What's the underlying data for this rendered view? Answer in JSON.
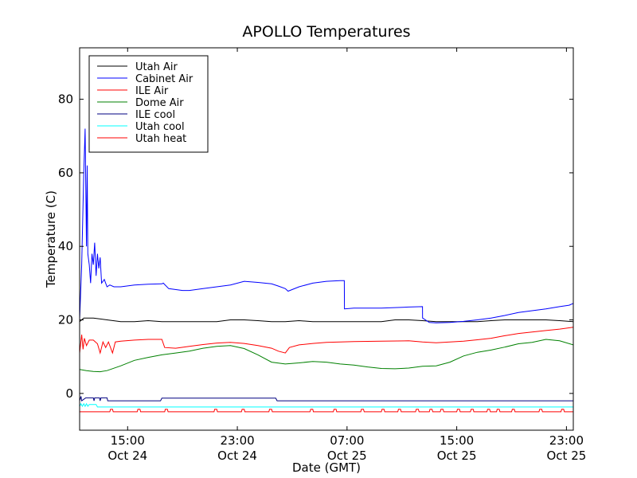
{
  "chart_data": {
    "type": "line",
    "title": "APOLLO Temperatures",
    "xlabel": "Date (GMT)",
    "ylabel": "Temperature (C)",
    "x_unit": "hours since Oct 24 11:00 GMT",
    "xlim": [
      0,
      36
    ],
    "ylim": [
      -10,
      94
    ],
    "yticks": [
      0,
      20,
      40,
      60,
      80
    ],
    "xticks": [
      {
        "x": 3.5,
        "time": "15:00",
        "date": "Oct 24"
      },
      {
        "x": 11.5,
        "time": "23:00",
        "date": "Oct 24"
      },
      {
        "x": 19.5,
        "time": "07:00",
        "date": "Oct 25"
      },
      {
        "x": 27.5,
        "time": "15:00",
        "date": "Oct 25"
      },
      {
        "x": 35.5,
        "time": "23:00",
        "date": "Oct 25"
      }
    ],
    "legend_position": "top-left",
    "series": [
      {
        "name": "Utah Air",
        "color": "#000000",
        "x": [
          0,
          0.3,
          1,
          2,
          3,
          4,
          5,
          6,
          7,
          8,
          9,
          10,
          11,
          12,
          13,
          14,
          15,
          16,
          17,
          18,
          19,
          20,
          21,
          22,
          23,
          24,
          25,
          26,
          27,
          28,
          29,
          30,
          31,
          32,
          33,
          34,
          35,
          36
        ],
        "y": [
          19.5,
          20.5,
          20.5,
          20,
          19.5,
          19.5,
          19.8,
          19.5,
          19.5,
          19.5,
          19.5,
          19.5,
          20,
          20,
          19.8,
          19.5,
          19.5,
          19.8,
          19.5,
          19.5,
          19.5,
          19.5,
          19.5,
          19.5,
          20,
          20,
          19.8,
          19.5,
          19.5,
          19.5,
          19.5,
          19.8,
          20,
          20,
          20,
          20,
          19.8,
          19.5
        ]
      },
      {
        "name": "Cabinet Air",
        "color": "#0000ff",
        "x": [
          0,
          0.15,
          0.3,
          0.4,
          0.45,
          0.5,
          0.55,
          0.6,
          0.7,
          0.8,
          0.9,
          1.0,
          1.1,
          1.2,
          1.3,
          1.4,
          1.5,
          1.6,
          1.8,
          2.0,
          2.2,
          2.5,
          3.0,
          4.0,
          5.0,
          6.0,
          6.1,
          6.5,
          7.5,
          8,
          9,
          10,
          11,
          12,
          13,
          14,
          14.5,
          15,
          15.2,
          16,
          17,
          18,
          19,
          19.3,
          19.31,
          20,
          22,
          24,
          25,
          25.01,
          25.5,
          26,
          27,
          28,
          29,
          30,
          31,
          32,
          33,
          34,
          35,
          35.7,
          36
        ],
        "y": [
          20,
          35,
          60,
          72,
          55,
          40,
          62,
          38,
          35,
          30,
          38,
          35,
          41,
          32,
          38,
          34,
          37,
          30,
          31,
          29,
          29.5,
          29,
          29,
          29.5,
          29.7,
          29.8,
          30,
          28.5,
          28,
          28,
          28.5,
          29,
          29.5,
          30.5,
          30.2,
          29.8,
          29.2,
          28.5,
          27.8,
          29,
          30,
          30.5,
          30.7,
          30.7,
          23,
          23.2,
          23.2,
          23.5,
          23.6,
          20.5,
          19.3,
          19.2,
          19.3,
          19.6,
          20,
          20.5,
          21.2,
          22,
          22.5,
          23,
          23.6,
          24,
          24.5
        ]
      },
      {
        "name": "ILE Air",
        "color": "#ff0000",
        "x": [
          0,
          0.15,
          0.25,
          0.35,
          0.5,
          0.7,
          1,
          1.3,
          1.5,
          1.7,
          1.9,
          2.1,
          2.4,
          2.6,
          3,
          4,
          5,
          6,
          6.2,
          7,
          8,
          9,
          10,
          11,
          12,
          13,
          14,
          14.5,
          15,
          15.3,
          16,
          17,
          18,
          19,
          20,
          22,
          24,
          25,
          26,
          27,
          28,
          29,
          30,
          31,
          32,
          33,
          34,
          35,
          36
        ],
        "y": [
          11,
          16,
          12,
          15,
          13,
          14.5,
          14.5,
          13.5,
          11,
          14,
          12.5,
          14,
          11,
          14,
          14.2,
          14.5,
          14.7,
          14.7,
          12.5,
          12.3,
          12.8,
          13.3,
          13.7,
          13.9,
          13.6,
          13,
          12.3,
          11.5,
          11,
          12.5,
          13.2,
          13.6,
          13.9,
          14,
          14.1,
          14.2,
          14.3,
          14,
          13.8,
          14,
          14.2,
          14.6,
          15,
          15.7,
          16.3,
          16.7,
          17.1,
          17.5,
          18
        ]
      },
      {
        "name": "Dome Air",
        "color": "#008000",
        "x": [
          0,
          0.5,
          1,
          1.5,
          2,
          3,
          4,
          5,
          6,
          7,
          8,
          9,
          10,
          11,
          12,
          13,
          14,
          15,
          16,
          17,
          18,
          19,
          20,
          21,
          22,
          23,
          24,
          25,
          26,
          27,
          28,
          29,
          30,
          31,
          32,
          33,
          34,
          35,
          36
        ],
        "y": [
          6.5,
          6.2,
          6,
          5.9,
          6.2,
          7.5,
          9,
          9.8,
          10.5,
          11,
          11.5,
          12.3,
          12.8,
          13,
          12.2,
          10.5,
          8.5,
          8,
          8.3,
          8.7,
          8.5,
          8,
          7.7,
          7.2,
          6.8,
          6.7,
          6.9,
          7.4,
          7.5,
          8.5,
          10.2,
          11.2,
          11.8,
          12.6,
          13.5,
          13.9,
          14.7,
          14.3,
          13.2
        ]
      },
      {
        "name": "ILE cool",
        "color": "#000080",
        "x": [
          0,
          0.1,
          0.15,
          0.3,
          0.45,
          1,
          1.05,
          1.1,
          1.45,
          1.5,
          1.55,
          2,
          2.05,
          2.1,
          5.9,
          6,
          14.3,
          14.4,
          36
        ],
        "y": [
          -2,
          -0.8,
          -2,
          -1.6,
          -1.2,
          -1.2,
          -2,
          -1.2,
          -1.2,
          -2,
          -1.2,
          -1.2,
          -2,
          -2,
          -2,
          -1.3,
          -1.3,
          -2,
          -2
        ]
      },
      {
        "name": "Utah cool",
        "color": "#00ffff",
        "x": [
          0,
          0.1,
          0.2,
          0.3,
          0.4,
          0.5,
          0.6,
          0.7,
          1.2,
          1.3,
          36
        ],
        "y": [
          -3.5,
          -2.8,
          -3.5,
          -2.8,
          -3.5,
          -2.8,
          -3.5,
          -3,
          -3,
          -3.7,
          -3.7
        ]
      },
      {
        "name": "Utah heat",
        "color": "#ff0000",
        "x": [
          0,
          2.2,
          2.25,
          2.4,
          2.45,
          4.2,
          4.25,
          4.4,
          4.45,
          6.2,
          6.25,
          6.4,
          6.45,
          9.8,
          9.85,
          10,
          10.05,
          11.8,
          11.85,
          12,
          12.05,
          13.8,
          13.85,
          14,
          14.05,
          16.8,
          16.85,
          17,
          17.05,
          18.5,
          18.55,
          18.7,
          18.75,
          20.5,
          20.55,
          20.7,
          20.75,
          22,
          22.05,
          22.2,
          22.25,
          23.2,
          23.25,
          23.4,
          23.45,
          24.5,
          24.55,
          24.7,
          24.75,
          25.5,
          25.55,
          25.7,
          25.75,
          26.3,
          26.35,
          26.5,
          26.55,
          27.5,
          27.55,
          27.7,
          27.75,
          28.5,
          28.55,
          28.7,
          28.75,
          29.7,
          29.75,
          29.9,
          29.95,
          30.4,
          30.45,
          30.6,
          30.65,
          31.5,
          31.55,
          31.7,
          31.75,
          33.5,
          33.55,
          33.7,
          33.75,
          35.1,
          35.15,
          35.3,
          35.35,
          36
        ],
        "y": [
          -5,
          -5,
          -4.3,
          -4.3,
          -5,
          -5,
          -4.3,
          -4.3,
          -5,
          -5,
          -4.3,
          -4.3,
          -5,
          -5,
          -4.3,
          -4.3,
          -5,
          -5,
          -4.3,
          -4.3,
          -5,
          -5,
          -4.3,
          -4.3,
          -5,
          -5,
          -4.3,
          -4.3,
          -5,
          -5,
          -4.3,
          -4.3,
          -5,
          -5,
          -4.3,
          -4.3,
          -5,
          -5,
          -4.3,
          -4.3,
          -5,
          -5,
          -4.3,
          -4.3,
          -5,
          -5,
          -4.3,
          -4.3,
          -5,
          -5,
          -4.3,
          -4.3,
          -5,
          -5,
          -4.3,
          -4.3,
          -5,
          -5,
          -4.3,
          -4.3,
          -5,
          -5,
          -4.3,
          -4.3,
          -5,
          -5,
          -4.3,
          -4.3,
          -5,
          -5,
          -4.3,
          -4.3,
          -5,
          -5,
          -4.3,
          -4.3,
          -5,
          -5,
          -4.3,
          -4.3,
          -5,
          -5,
          -4.3,
          -4.3,
          -5,
          -5
        ]
      }
    ]
  }
}
